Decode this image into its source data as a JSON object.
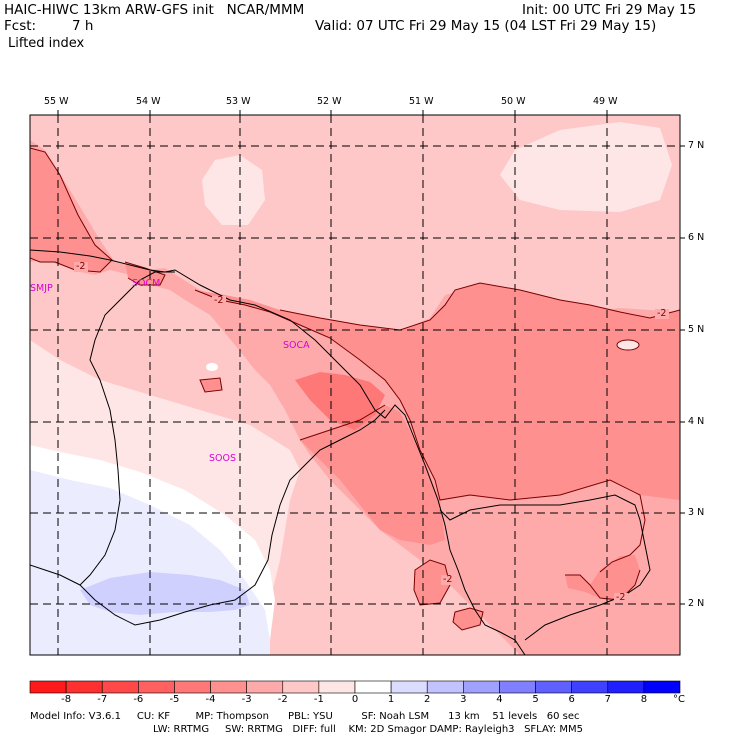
{
  "header": {
    "title": "HAIC-HIWC 13km ARW-GFS init   NCAR/MMM",
    "fcst_label": "Fcst:",
    "fcst_value": "7 h",
    "field": "Lifted index",
    "init": "Init: 00 UTC Fri 29 May 15",
    "valid": "Valid: 07 UTC Fri 29 May 15 (04 LST Fri 29 May 15)"
  },
  "map": {
    "lon_labels": [
      "55 W",
      "54 W",
      "53 W",
      "52 W",
      "51 W",
      "50 W",
      "49 W"
    ],
    "lat_labels": [
      "7 N",
      "6 N",
      "5 N",
      "4 N",
      "3 N",
      "2 N"
    ],
    "contour_labels": [
      "-2",
      "-2",
      "-2",
      "-2",
      "-2",
      "-2"
    ],
    "stations": [
      "SMJP",
      "SOCM",
      "SOCA",
      "SOOS"
    ]
  },
  "colorbar": {
    "ticks": [
      "-8",
      "-7",
      "-6",
      "-5",
      "-4",
      "-3",
      "-2",
      "-1",
      "0",
      "1",
      "2",
      "3",
      "4",
      "5",
      "6",
      "7",
      "8"
    ],
    "unit": "°C",
    "colors": [
      "#ff1a1a",
      "#ff3030",
      "#ff4848",
      "#ff6060",
      "#ff7878",
      "#ff9090",
      "#ffaaaa",
      "#ffc8c8",
      "#ffe6e6",
      "#ffffff",
      "#dcdcff",
      "#c2c2ff",
      "#a0a0ff",
      "#8080ff",
      "#6060ff",
      "#4040ff",
      "#2020ff",
      "#0000ff"
    ]
  },
  "footer": {
    "line1": "Model Info: V3.6.1     CU: KF        MP: Thompson      PBL: YSU         SF: Noah LSM      13 km    51 levels   60 sec",
    "line2": "LW: RRTMG     SW: RRTMG   DIFF: full    KM: 2D Smagor DAMP: Rayleigh3   SFLAY: MM5"
  }
}
